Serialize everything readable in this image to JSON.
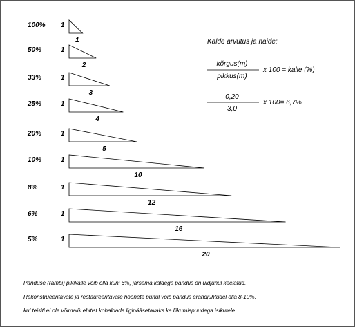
{
  "slopes": [
    {
      "percent": "100%",
      "rise": "1",
      "run": "1"
    },
    {
      "percent": "50%",
      "rise": "1",
      "run": "2"
    },
    {
      "percent": "33%",
      "rise": "1",
      "run": "3"
    },
    {
      "percent": "25%",
      "rise": "1",
      "run": "4"
    },
    {
      "percent": "20%",
      "rise": "1",
      "run": "5"
    },
    {
      "percent": "10%",
      "rise": "1",
      "run": "10"
    },
    {
      "percent": "8%",
      "rise": "1",
      "run": "12"
    },
    {
      "percent": "6%",
      "rise": "1",
      "run": "16"
    },
    {
      "percent": "5%",
      "rise": "1",
      "run": "20"
    }
  ],
  "formula": {
    "title": "Kalde arvutus ja näide:",
    "numerator": "kõrgus(m)",
    "denominator": "pikkus(m)",
    "result": "x 100 = kalle (%)",
    "example_numerator": "0,20",
    "example_denominator": "3,0",
    "example_result": "x 100= 6,7%"
  },
  "notes": [
    "Panduse (rambi) pikikalle võib olla kuni 6%, järsema kaldega pandus on üldjuhul keelatud.",
    "Rekonstrueeritavate ja restaureeritavate hoonete puhul võib pandus erandjuhtudel olla 8-10%,",
    "kui teisiti ei ole võimalik ehitist kohaldada ligipääsetavaks ka liikumispuudega isikutele."
  ]
}
